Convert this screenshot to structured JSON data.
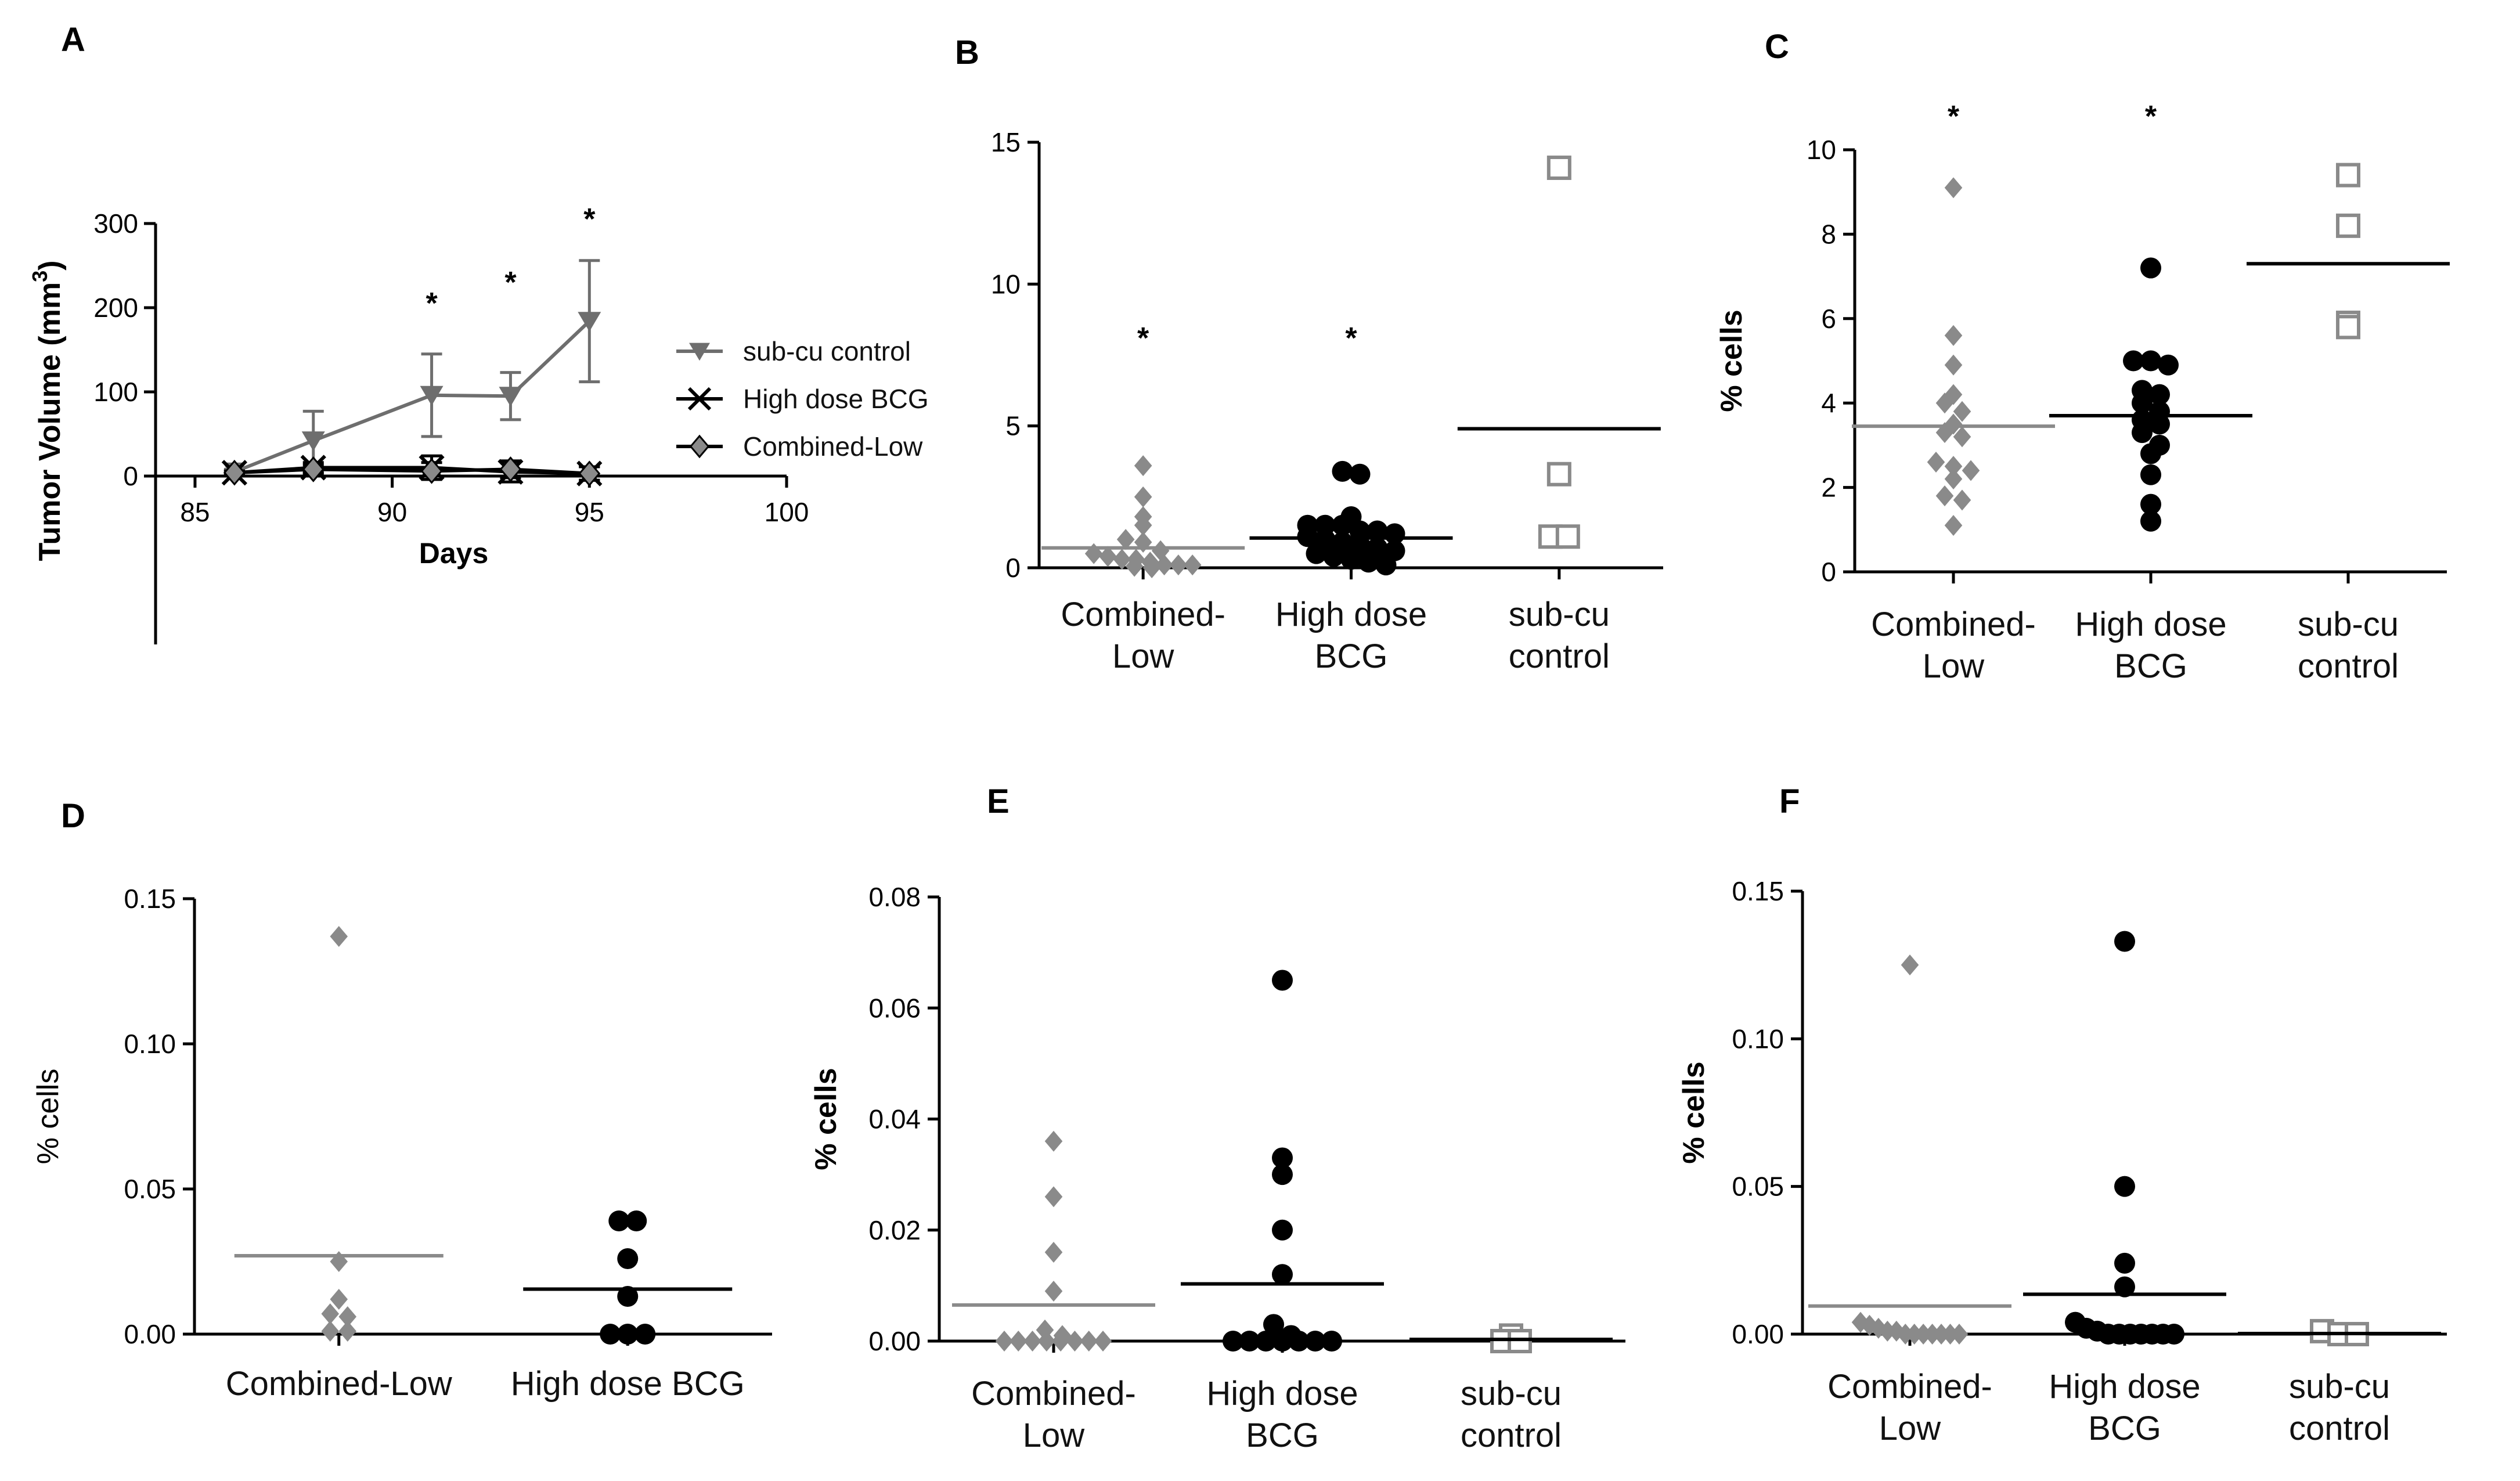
{
  "figure": {
    "background": "#ffffff"
  },
  "chart_data": [
    {
      "panel": "A",
      "type": "line",
      "xlabel": "Days",
      "ylabel_main": "Tumor Volume (mm",
      "ylabel_sup": "3",
      "ylabel_close": ")",
      "xlim": [
        84,
        100
      ],
      "ylim": [
        -200,
        300
      ],
      "xticks": [
        85,
        90,
        95,
        100
      ],
      "yticks": [
        0,
        100,
        200,
        300
      ],
      "series": [
        {
          "name": "sub-cu control",
          "color": "#6e6e6e",
          "marker": "triangle-down",
          "x": [
            86,
            88,
            91,
            93,
            95
          ],
          "y": [
            5,
            42,
            96,
            95,
            184
          ],
          "err": [
            3,
            35,
            49,
            28,
            72
          ]
        },
        {
          "name": "High dose BCG",
          "color": "#000000",
          "marker": "x",
          "x": [
            86,
            88,
            91,
            93,
            95
          ],
          "y": [
            4,
            10,
            10,
            5,
            3
          ],
          "err": [
            2,
            6,
            14,
            12,
            8
          ]
        },
        {
          "name": "Combined-Low",
          "color": "#000000",
          "fill": "#8a8a8a",
          "marker": "diamond",
          "x": [
            86,
            88,
            91,
            93,
            95
          ],
          "y": [
            4,
            8,
            6,
            8,
            3
          ],
          "err": [
            2,
            5,
            10,
            10,
            8
          ]
        }
      ],
      "significance": [
        {
          "x": 91,
          "y": 200,
          "text": "*"
        },
        {
          "x": 93,
          "y": 225,
          "text": "*"
        },
        {
          "x": 95,
          "y": 300,
          "text": "*"
        }
      ]
    },
    {
      "panel": "B",
      "type": "scatter",
      "ylabel": "",
      "ylim": [
        0,
        15
      ],
      "yticks": [
        0,
        5,
        10,
        15
      ],
      "groups": [
        {
          "label_lines": [
            "Combined-",
            "Low"
          ],
          "color": "#8a8a8a",
          "marker": "diamond",
          "mean": 0.7,
          "values": [
            3.6,
            2.5,
            1.8,
            1.5,
            1.0,
            0.9,
            0.6,
            0.5,
            0.4,
            0.3,
            0.3,
            0.2,
            0.1,
            0.1,
            0.1,
            0.05,
            0.0
          ],
          "star": "*"
        },
        {
          "label_lines": [
            "High dose",
            "BCG"
          ],
          "color": "#000000",
          "marker": "circle",
          "mean": 1.05,
          "values": [
            3.4,
            3.3,
            1.8,
            1.5,
            1.5,
            1.5,
            1.3,
            1.3,
            1.2,
            1.1,
            1.0,
            0.9,
            0.8,
            0.7,
            0.6,
            0.5,
            0.4,
            0.3,
            0.2,
            0.1
          ],
          "star": "*"
        },
        {
          "label_lines": [
            "sub-cu",
            "control"
          ],
          "color": "#8a8a8a",
          "marker": "square-open",
          "mean": 4.9,
          "values": [
            14.1,
            3.3,
            1.1,
            1.1
          ],
          "star": ""
        }
      ]
    },
    {
      "panel": "C",
      "type": "scatter",
      "ylabel": "% cells",
      "ylim": [
        0,
        10
      ],
      "yticks": [
        0,
        2,
        4,
        6,
        8,
        10
      ],
      "groups": [
        {
          "label_lines": [
            "Combined-",
            "Low"
          ],
          "color": "#8a8a8a",
          "marker": "diamond",
          "mean": 3.45,
          "values": [
            9.1,
            5.6,
            4.9,
            4.2,
            4.0,
            3.8,
            3.5,
            3.3,
            3.2,
            2.6,
            2.5,
            2.4,
            2.2,
            1.8,
            1.7,
            1.1
          ],
          "star": "*"
        },
        {
          "label_lines": [
            "High dose",
            "BCG"
          ],
          "color": "#000000",
          "marker": "circle",
          "mean": 3.7,
          "values": [
            7.2,
            5.0,
            5.0,
            4.9,
            4.3,
            4.2,
            4.0,
            3.8,
            3.6,
            3.5,
            3.3,
            3.0,
            2.8,
            2.3,
            1.6,
            1.2
          ],
          "star": "*"
        },
        {
          "label_lines": [
            "sub-cu",
            "control"
          ],
          "color": "#8a8a8a",
          "marker": "square-open",
          "mean": 7.3,
          "values": [
            9.4,
            8.2,
            5.9,
            5.8
          ],
          "star": ""
        }
      ]
    },
    {
      "panel": "D",
      "type": "scatter",
      "ylabel": "% cells",
      "ylim": [
        0,
        0.15
      ],
      "yticks": [
        0.0,
        0.05,
        0.1,
        0.15
      ],
      "groups": [
        {
          "label_lines": [
            "Combined-Low"
          ],
          "color": "#8a8a8a",
          "marker": "diamond",
          "mean": 0.027,
          "values": [
            0.137,
            0.025,
            0.012,
            0.007,
            0.006,
            0.001,
            0.001
          ],
          "star": ""
        },
        {
          "label_lines": [
            "High dose BCG"
          ],
          "color": "#000000",
          "marker": "circle",
          "mean": 0.0155,
          "values": [
            0.039,
            0.039,
            0.026,
            0.013,
            0.0,
            0.0,
            0.0
          ],
          "star": ""
        }
      ]
    },
    {
      "panel": "E",
      "type": "scatter",
      "ylabel": "% cells",
      "ylim": [
        0,
        0.08
      ],
      "yticks": [
        0.0,
        0.02,
        0.04,
        0.06,
        0.08
      ],
      "groups": [
        {
          "label_lines": [
            "Combined-",
            "Low"
          ],
          "color": "#8a8a8a",
          "marker": "diamond",
          "mean": 0.0065,
          "values": [
            0.036,
            0.026,
            0.016,
            0.009,
            0.002,
            0.001,
            0.0,
            0.0,
            0.0,
            0.0,
            0.0,
            0.0,
            0.0,
            0.0
          ],
          "star": ""
        },
        {
          "label_lines": [
            "High dose",
            "BCG"
          ],
          "color": "#000000",
          "marker": "circle",
          "mean": 0.0103,
          "values": [
            0.065,
            0.033,
            0.03,
            0.02,
            0.012,
            0.003,
            0.001,
            0.0,
            0.0,
            0.0,
            0.0,
            0.0,
            0.0,
            0.0
          ],
          "star": ""
        },
        {
          "label_lines": [
            "sub-cu",
            "control"
          ],
          "color": "#8a8a8a",
          "marker": "square-open",
          "mean": 0.0003,
          "values": [
            0.001,
            0.0,
            0.0
          ],
          "star": ""
        }
      ]
    },
    {
      "panel": "F",
      "type": "scatter",
      "ylabel": "% cells",
      "ylim": [
        0,
        0.15
      ],
      "yticks": [
        0.0,
        0.05,
        0.1,
        0.15
      ],
      "groups": [
        {
          "label_lines": [
            "Combined-",
            "Low"
          ],
          "color": "#8a8a8a",
          "marker": "diamond",
          "mean": 0.0095,
          "values": [
            0.125,
            0.004,
            0.003,
            0.002,
            0.001,
            0.001,
            0.0,
            0.0,
            0.0,
            0.0,
            0.0,
            0.0,
            0.0
          ],
          "star": ""
        },
        {
          "label_lines": [
            "High dose",
            "BCG"
          ],
          "color": "#000000",
          "marker": "circle",
          "mean": 0.0135,
          "values": [
            0.133,
            0.05,
            0.024,
            0.016,
            0.004,
            0.002,
            0.001,
            0.0,
            0.0,
            0.0,
            0.0,
            0.0,
            0.0,
            0.0
          ],
          "star": ""
        },
        {
          "label_lines": [
            "sub-cu",
            "control"
          ],
          "color": "#8a8a8a",
          "marker": "square-open",
          "mean": 0.0002,
          "values": [
            0.001,
            0.0,
            0.0
          ],
          "star": ""
        }
      ]
    }
  ]
}
